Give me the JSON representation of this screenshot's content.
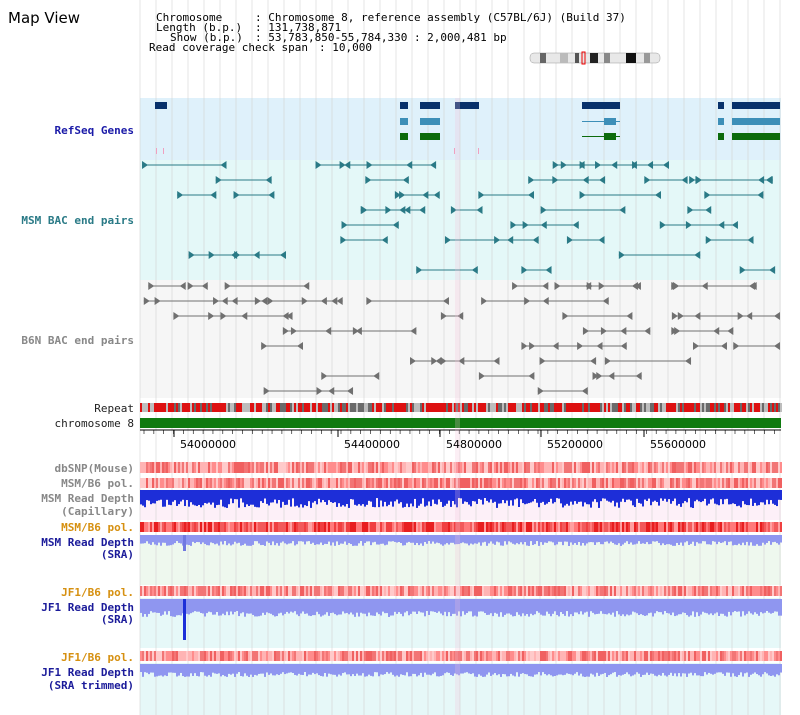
{
  "title": "Map View",
  "info": {
    "chromosome_label": "Chromosome",
    "chromosome_value": ": Chromosome 8, reference assembly (C57BL/6J) (Build 37)",
    "length_label": "Length (b.p.)",
    "length_value": ": 131,738,871",
    "show_label": "Show (b.p.)",
    "show_value": ": 53,783,850-55,784,330 : 2,000,481 bp",
    "span_label": "Read coverage check span",
    "span_value": ": 10,000"
  },
  "tracks": {
    "refseq": "RefSeq Genes",
    "msm_bac": "MSM BAC end pairs",
    "b6n_bac": "B6N BAC end pairs",
    "repeat": "Repeat",
    "chromosome": "chromosome 8",
    "dbsnp": "dbSNP(Mouse)",
    "msm_b6_pol": "MSM/B6 pol.",
    "msm_depth_cap_1": "MSM Read Depth",
    "msm_depth_cap_2": "(Capillary)",
    "msm_b6_pol2": "MSM/B6 pol.",
    "msm_depth_sra_1": "MSM Read Depth",
    "msm_depth_sra_2": "(SRA)",
    "jf1_b6_pol": "JF1/B6 pol.",
    "jf1_depth_sra_1": "JF1 Read Depth",
    "jf1_depth_sra_2": "(SRA)",
    "jf1_b6_pol2": "JF1/B6 pol.",
    "jf1_depth_trim_1": "JF1 Read Depth",
    "jf1_depth_trim_2": "(SRA trimmed)"
  },
  "axis_ticks": [
    "54000000",
    "54400000",
    "54800000",
    "55200000",
    "55600000"
  ],
  "colors": {
    "refseq_bg": "#dff1fb",
    "msm_bac_bg": "#e4f8f8",
    "b6n_bg": "#f4f4f4",
    "gene_dark": "#08316b",
    "gene_mid": "#3d8fb8",
    "gene_green": "#0c6b0c",
    "msm_bac": "#2a7a86",
    "b6n_bac": "#707070",
    "chromosome_bar": "#0f7a0f",
    "depth_blue": "#1d2ed8",
    "depth_light": "#8f96f0"
  }
}
